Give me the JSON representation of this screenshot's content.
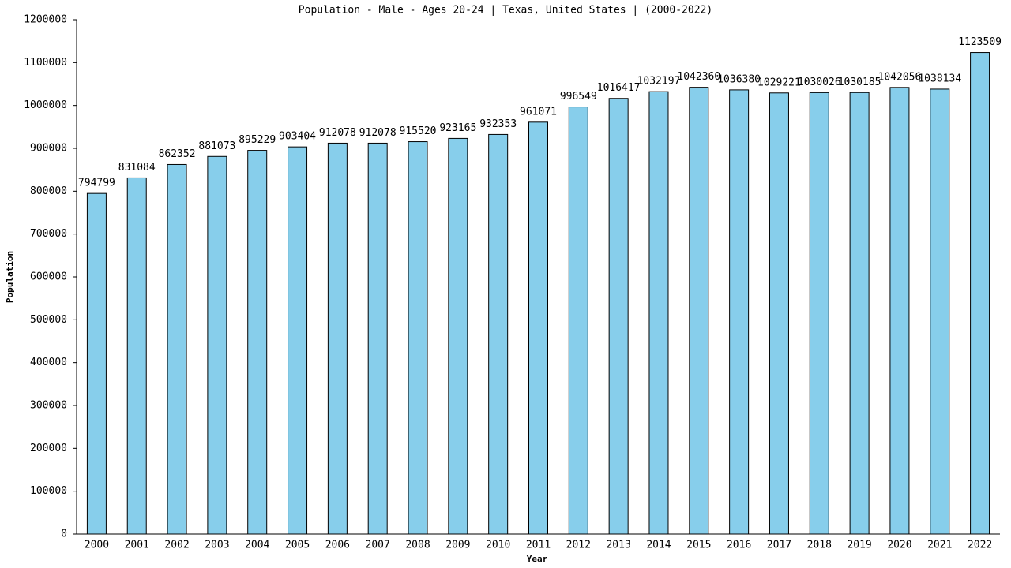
{
  "chart_data": {
    "type": "bar",
    "title": "Population - Male - Ages 20-24 | Texas, United States |  (2000-2022)",
    "x_label": "Year",
    "y_label": "Population",
    "categories": [
      "2000",
      "2001",
      "2002",
      "2003",
      "2004",
      "2005",
      "2006",
      "2007",
      "2008",
      "2009",
      "2010",
      "2011",
      "2012",
      "2013",
      "2014",
      "2015",
      "2016",
      "2017",
      "2018",
      "2019",
      "2020",
      "2021",
      "2022"
    ],
    "values": [
      794799,
      831084,
      862352,
      881073,
      895229,
      903404,
      912078,
      912078,
      915520,
      923165,
      932353,
      961071,
      996549,
      1016417,
      1032197,
      1042360,
      1036380,
      1029221,
      1030026,
      1030185,
      1042056,
      1038134,
      1123509
    ],
    "color": "#87ceeb",
    "ylim": [
      0,
      1200000
    ],
    "yticks": [
      0,
      100000,
      200000,
      300000,
      400000,
      500000,
      600000,
      700000,
      800000,
      900000,
      1000000,
      1100000,
      1200000
    ]
  }
}
